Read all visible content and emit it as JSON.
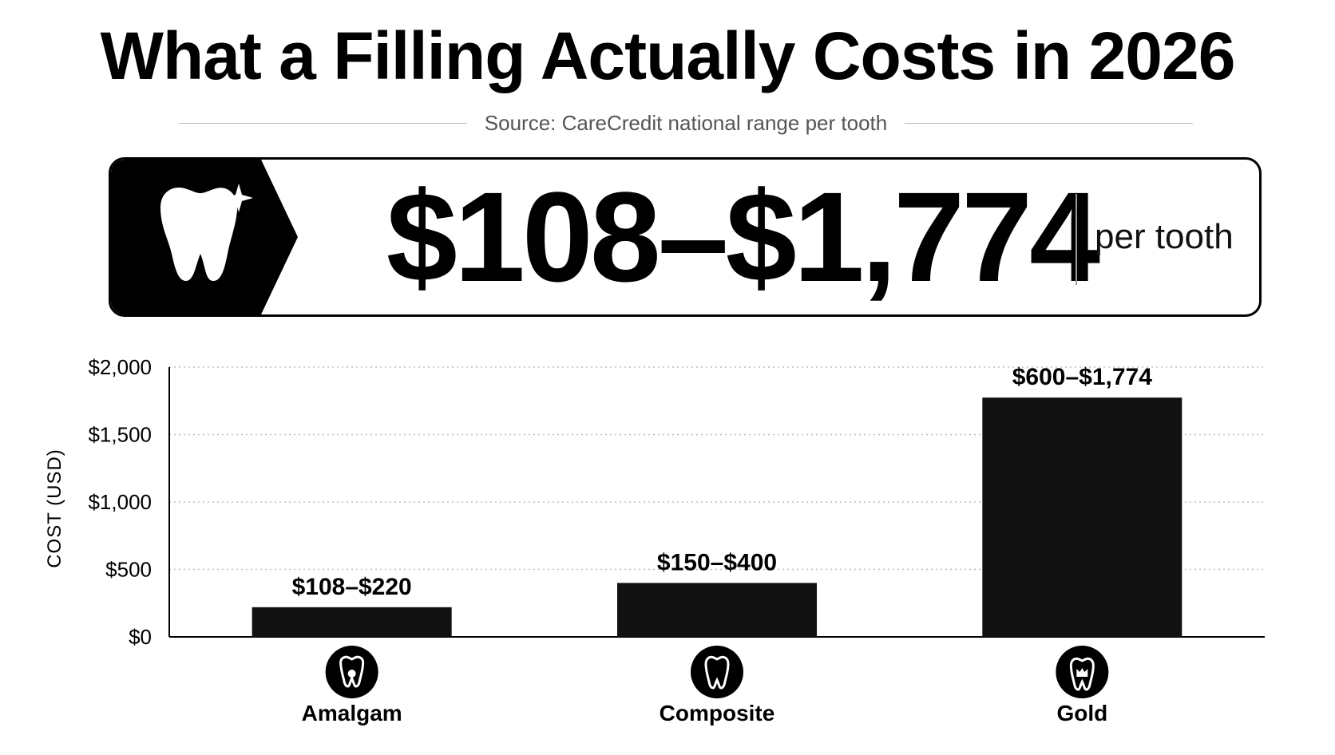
{
  "header": {
    "title": "What a Filling Actually Costs in 2026",
    "source": "Source: CareCredit national range per tooth"
  },
  "banner": {
    "icon": "tooth-sparkle-icon",
    "range": "$108–$1,774",
    "unit": "per tooth"
  },
  "colors": {
    "bar": "#111111",
    "text": "#000000",
    "grid": "#bdbdbd"
  },
  "chart_data": {
    "type": "bar",
    "categories": [
      "Amalgam",
      "Composite",
      "Gold"
    ],
    "values": [
      220,
      400,
      1774
    ],
    "ranges": [
      [
        108,
        220
      ],
      [
        150,
        400
      ],
      [
        600,
        1774
      ]
    ],
    "data_labels": [
      "$108–$220",
      "$150–$400",
      "$600–$1,774"
    ],
    "category_icons": [
      "amalgam-filling-icon",
      "tooth-icon",
      "gold-crown-tooth-icon"
    ],
    "ylabel": "COST (USD)",
    "ylim": [
      0,
      2000
    ],
    "yticks": [
      0,
      500,
      1000,
      1500,
      2000
    ],
    "ytick_labels": [
      "$0",
      "$500",
      "$1,000",
      "$1,500",
      "$2,000"
    ],
    "grid": true
  }
}
